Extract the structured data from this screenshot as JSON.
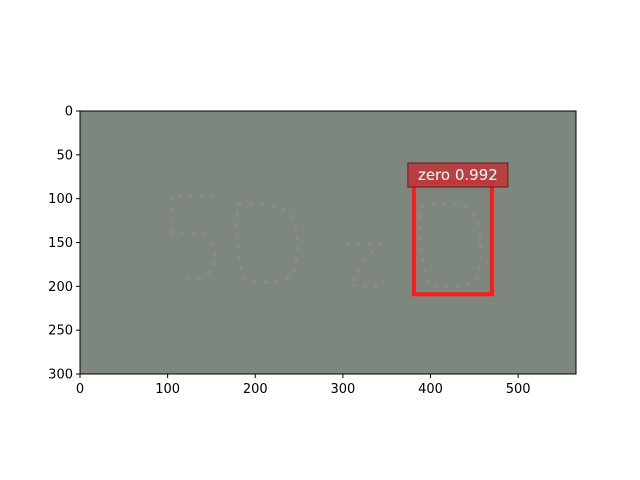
{
  "chart_data": {
    "type": "image",
    "title": "",
    "xlabel": "",
    "ylabel": "",
    "xlim": [
      0,
      566
    ],
    "ylim": [
      300,
      0
    ],
    "x_ticks": [
      "0",
      "100",
      "200",
      "300",
      "400",
      "500"
    ],
    "y_ticks": [
      "0",
      "50",
      "100",
      "150",
      "200",
      "250",
      "300"
    ],
    "detections": [
      {
        "label": "zero 0.992",
        "class": "zero",
        "score": 0.992,
        "x_range": [
          381,
          470
        ],
        "y_range": [
          81,
          209
        ]
      }
    ]
  },
  "colors": {
    "image_background": "#7e877e",
    "digit_ghost": "#a08a8a",
    "box": "#ff1a1a",
    "label_background": "#c0393b",
    "label_text": "#ffffff"
  }
}
